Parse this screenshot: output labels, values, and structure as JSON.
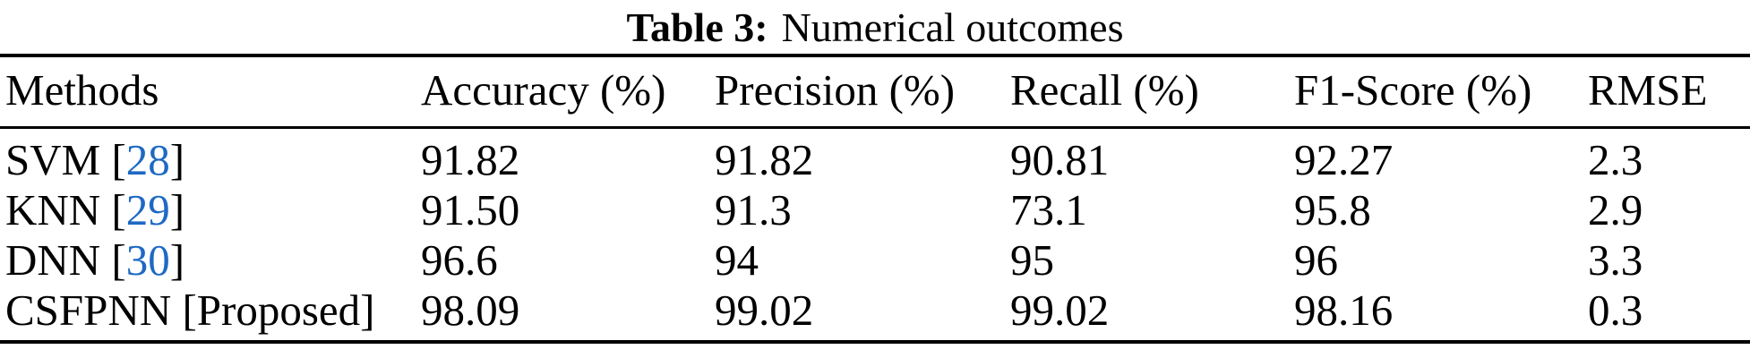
{
  "caption": {
    "label": "Table 3:",
    "text": "Numerical outcomes"
  },
  "table": {
    "columns": [
      "Methods",
      "Accuracy (%)",
      "Precision (%)",
      "Recall (%)",
      "F1-Score (%)",
      "RMSE"
    ],
    "rows": [
      {
        "method": "SVM",
        "ref": "28",
        "ref_linked": true,
        "values": [
          "91.82",
          "91.82",
          "90.81",
          "92.27",
          "2.3"
        ]
      },
      {
        "method": "KNN",
        "ref": "29",
        "ref_linked": true,
        "values": [
          "91.50",
          "91.3",
          "73.1",
          "95.8",
          "2.9"
        ]
      },
      {
        "method": "DNN",
        "ref": "30",
        "ref_linked": true,
        "values": [
          "96.6",
          "94",
          "95",
          "96",
          "3.3"
        ]
      },
      {
        "method": "CSFPNN",
        "ref": "Proposed",
        "ref_linked": false,
        "values": [
          "98.09",
          "99.02",
          "99.02",
          "98.16",
          "0.3"
        ]
      }
    ]
  },
  "colors": {
    "citation_link": "#1e69c3",
    "text": "#000000",
    "rule": "#000000"
  }
}
